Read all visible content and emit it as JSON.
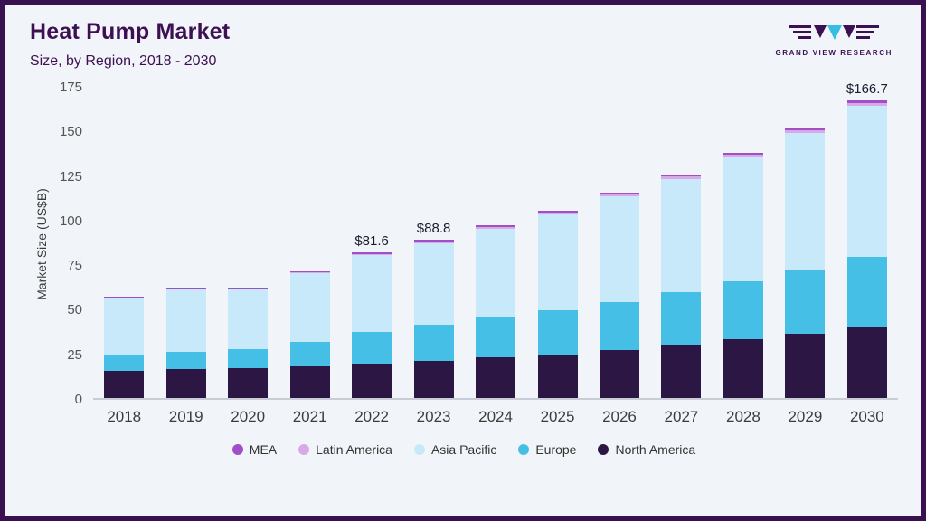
{
  "header": {
    "title": "Heat Pump Market",
    "subtitle": "Size, by Region, 2018 - 2030"
  },
  "brand": {
    "name": "GRAND VIEW RESEARCH"
  },
  "colors": {
    "accent_border": "#3a1150",
    "title_text": "#3d1053",
    "background": "#f1f4f8"
  },
  "chart_data": {
    "type": "bar",
    "stacked": true,
    "title": "Heat Pump Market",
    "subtitle": "Size, by Region, 2018 - 2030",
    "ylabel": "Market Size (US$B)",
    "xlabel": "",
    "ylim": [
      0,
      175
    ],
    "yticks": [
      0,
      25,
      50,
      75,
      100,
      125,
      150,
      175
    ],
    "grid": false,
    "legend_position": "bottom",
    "categories": [
      "2018",
      "2019",
      "2020",
      "2021",
      "2022",
      "2023",
      "2024",
      "2025",
      "2026",
      "2027",
      "2028",
      "2029",
      "2030"
    ],
    "series": [
      {
        "name": "North America",
        "color": "#2c1644",
        "values": [
          15,
          16,
          16.5,
          18,
          19.5,
          21,
          23,
          24.5,
          27,
          30,
          33,
          36,
          40
        ]
      },
      {
        "name": "Europe",
        "color": "#45bfe6",
        "values": [
          9,
          10,
          11,
          13.5,
          17.5,
          20,
          22,
          24.5,
          27,
          29.5,
          32.5,
          36,
          39
        ]
      },
      {
        "name": "Asia Pacific",
        "color": "#c7e9f9",
        "values": [
          32,
          35,
          33.5,
          38.5,
          43,
          46,
          50,
          54,
          59,
          63.5,
          69.5,
          76.5,
          85
        ]
      },
      {
        "name": "Latin America",
        "color": "#d9a9e6",
        "values": [
          0.5,
          0.6,
          0.6,
          0.7,
          0.9,
          1.0,
          1.1,
          1.2,
          1.3,
          1.4,
          1.5,
          1.5,
          1.5
        ]
      },
      {
        "name": "MEA",
        "color": "#a14fc9",
        "values": [
          0.4,
          0.4,
          0.4,
          0.5,
          0.7,
          0.8,
          0.9,
          0.9,
          1.0,
          1.0,
          1.1,
          1.2,
          1.2
        ]
      }
    ],
    "totals": [
      56.9,
      62.0,
      62.0,
      71.2,
      81.6,
      88.8,
      97.0,
      105.1,
      115.3,
      125.4,
      137.6,
      151.2,
      166.7
    ],
    "annotations": [
      {
        "category": "2022",
        "label": "$81.6"
      },
      {
        "category": "2023",
        "label": "$88.8"
      },
      {
        "category": "2030",
        "label": "$166.7"
      }
    ],
    "legend": [
      "MEA",
      "Latin America",
      "Asia Pacific",
      "Europe",
      "North America"
    ]
  }
}
